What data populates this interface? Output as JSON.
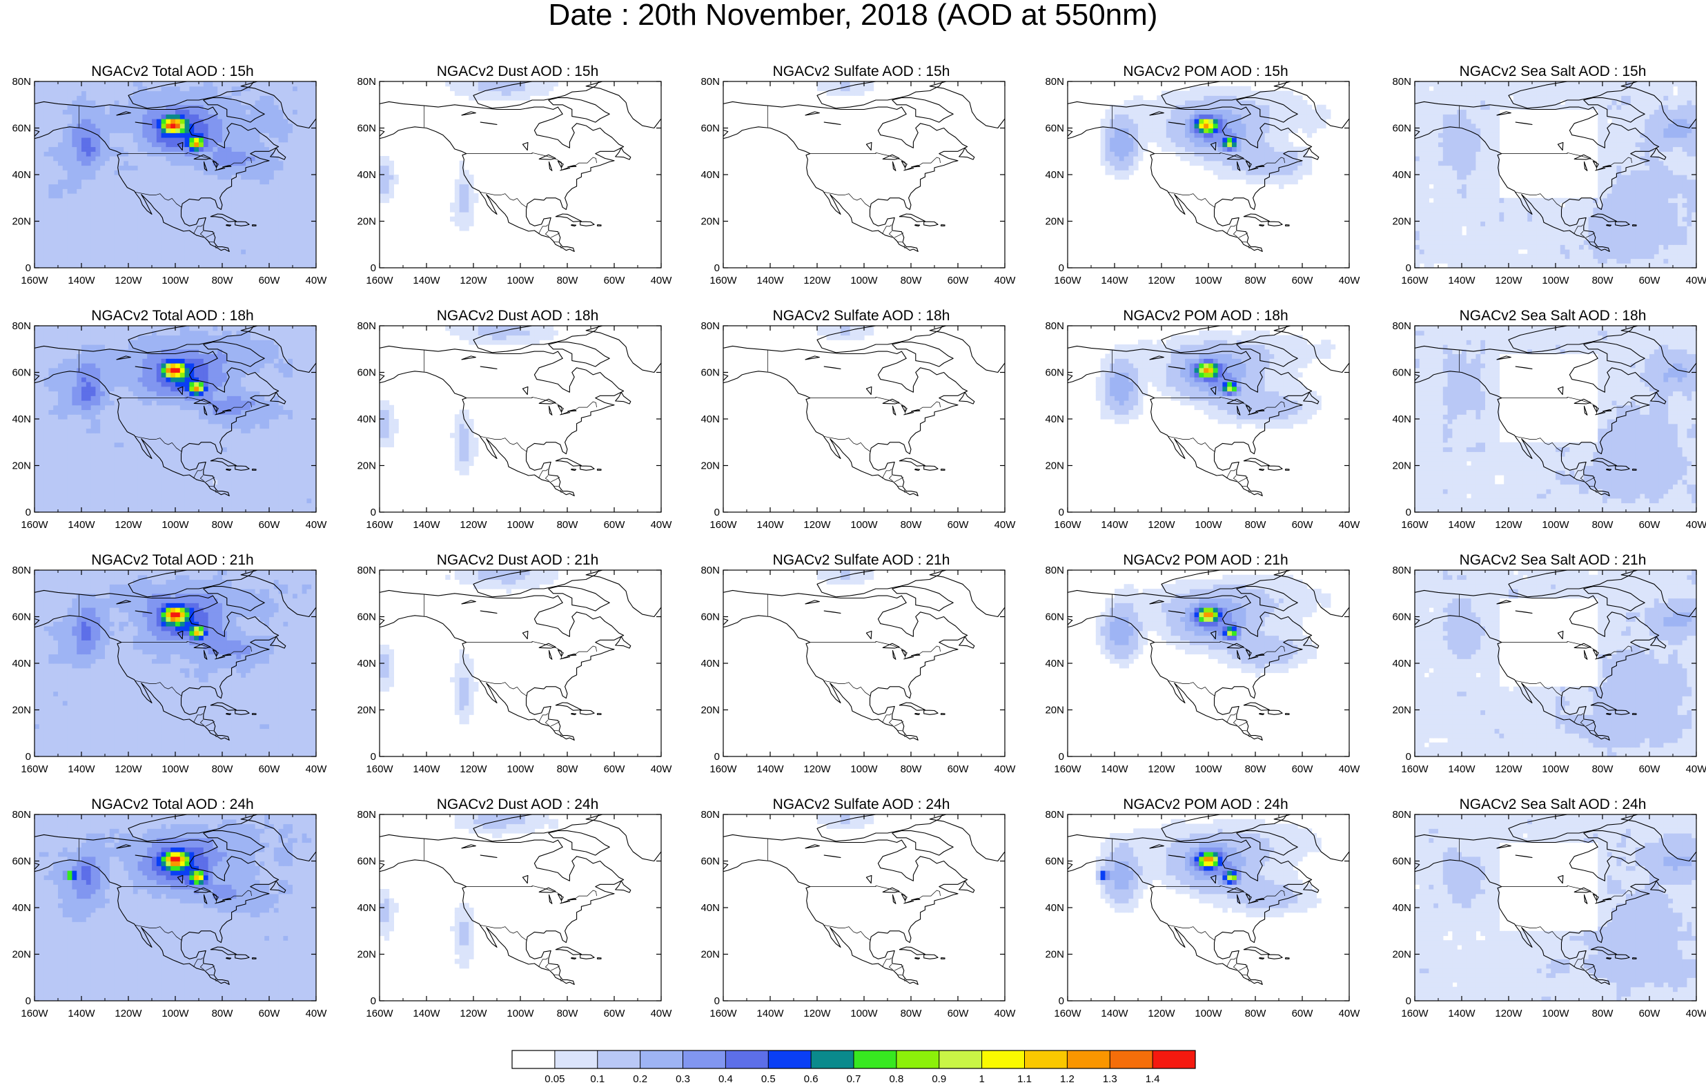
{
  "title": "Date : 20th November, 2018 (AOD at 550nm)",
  "panels": [
    {
      "title": "NGACv2 Total AOD : 15h",
      "species": "total",
      "hour": "15h"
    },
    {
      "title": "NGACv2 Dust AOD : 15h",
      "species": "dust",
      "hour": "15h"
    },
    {
      "title": "NGACv2 Sulfate AOD : 15h",
      "species": "sulfate",
      "hour": "15h"
    },
    {
      "title": "NGACv2 POM AOD : 15h",
      "species": "pom",
      "hour": "15h"
    },
    {
      "title": "NGACv2 Sea Salt AOD : 15h",
      "species": "seasalt",
      "hour": "15h"
    },
    {
      "title": "NGACv2 Total AOD : 18h",
      "species": "total",
      "hour": "18h"
    },
    {
      "title": "NGACv2 Dust AOD : 18h",
      "species": "dust",
      "hour": "18h"
    },
    {
      "title": "NGACv2 Sulfate AOD : 18h",
      "species": "sulfate",
      "hour": "18h"
    },
    {
      "title": "NGACv2 POM AOD : 18h",
      "species": "pom",
      "hour": "18h"
    },
    {
      "title": "NGACv2 Sea Salt AOD : 18h",
      "species": "seasalt",
      "hour": "18h"
    },
    {
      "title": "NGACv2 Total AOD : 21h",
      "species": "total",
      "hour": "21h"
    },
    {
      "title": "NGACv2 Dust AOD : 21h",
      "species": "dust",
      "hour": "21h"
    },
    {
      "title": "NGACv2 Sulfate AOD : 21h",
      "species": "sulfate",
      "hour": "21h"
    },
    {
      "title": "NGACv2 POM AOD : 21h",
      "species": "pom",
      "hour": "21h"
    },
    {
      "title": "NGACv2 Sea Salt AOD : 21h",
      "species": "seasalt",
      "hour": "21h"
    },
    {
      "title": "NGACv2 Total AOD : 24h",
      "species": "total",
      "hour": "24h"
    },
    {
      "title": "NGACv2 Dust AOD : 24h",
      "species": "dust",
      "hour": "24h"
    },
    {
      "title": "NGACv2 Sulfate AOD : 24h",
      "species": "sulfate",
      "hour": "24h"
    },
    {
      "title": "NGACv2 POM AOD : 24h",
      "species": "pom",
      "hour": "24h"
    },
    {
      "title": "NGACv2 Sea Salt  AOD : 24h",
      "species": "seasalt",
      "hour": "24h"
    }
  ],
  "lat_ticks": [
    "0",
    "20N",
    "40N",
    "60N",
    "80N"
  ],
  "lon_ticks": [
    "160W",
    "140W",
    "120W",
    "100W",
    "80W",
    "60W",
    "40W"
  ],
  "map_extent": {
    "lon_min": -160,
    "lon_max": -40,
    "lat_min": 0,
    "lat_max": 80
  },
  "colorbar": {
    "labels": [
      "0.05",
      "0.1",
      "0.2",
      "0.3",
      "0.4",
      "0.5",
      "0.6",
      "0.7",
      "0.8",
      "0.9",
      "1",
      "1.1",
      "1.2",
      "1.3",
      "1.4"
    ],
    "colors": [
      "#ffffff",
      "#dbe4fb",
      "#b9c8f6",
      "#9eb4f4",
      "#8196f0",
      "#5d6fe8",
      "#0a3ff5",
      "#0a8a8c",
      "#37e820",
      "#8cf00a",
      "#c9f546",
      "#fafa00",
      "#fac800",
      "#fa9600",
      "#f56e0a",
      "#f5190f"
    ]
  },
  "colors": {
    "outline": "#000000",
    "background": "#ffffff"
  }
}
